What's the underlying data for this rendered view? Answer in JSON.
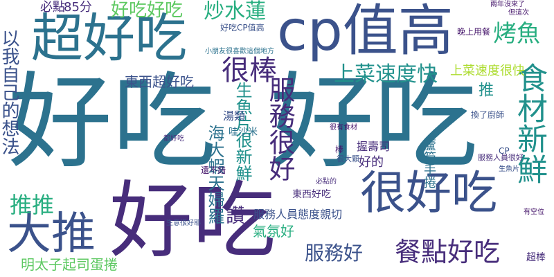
{
  "palette": {
    "dark_purple": "#44146a",
    "purple": "#472d7b",
    "indigo": "#3b528b",
    "blue": "#2c728e",
    "teal": "#21918c",
    "green_teal": "#28ae80",
    "green": "#5ec962",
    "lime": "#addc30",
    "yellow": "#fde725"
  },
  "words": [
    "好吃",
    "好吃",
    "好吃",
    "cp值高",
    "超好吃",
    "大推",
    "很好吃",
    "很棒",
    "服務很好",
    "食材新鮮",
    "上菜速度快",
    "上菜速度很快",
    "餐點好吃",
    "服務好",
    "炒水蓮",
    "好吃好吃",
    "烤魚",
    "東西超好吃",
    "推推",
    "以我自己的想法",
    "海大蝦天婦羅",
    "生魚片很新鮮",
    "必點",
    "85分",
    "明太子起司蛋捲",
    "讚",
    "氣氛好",
    "好的",
    "推",
    "超棒",
    "蘆筍手捲",
    "湯類",
    "哇沙米",
    "服務人員態度親切",
    "東西好吃",
    "握壽司",
    "好吃CP值高",
    "還不錯",
    "棒",
    "都好吃",
    "很大顆",
    "晚上用餐",
    "換了廚師",
    "CP",
    "服務人員很好",
    "生意很好耶",
    "但這次",
    "兩年沒來了",
    "有空位",
    "必點的",
    "生魚片",
    "很有食材",
    "小朋友很喜歡這個地方"
  ]
}
